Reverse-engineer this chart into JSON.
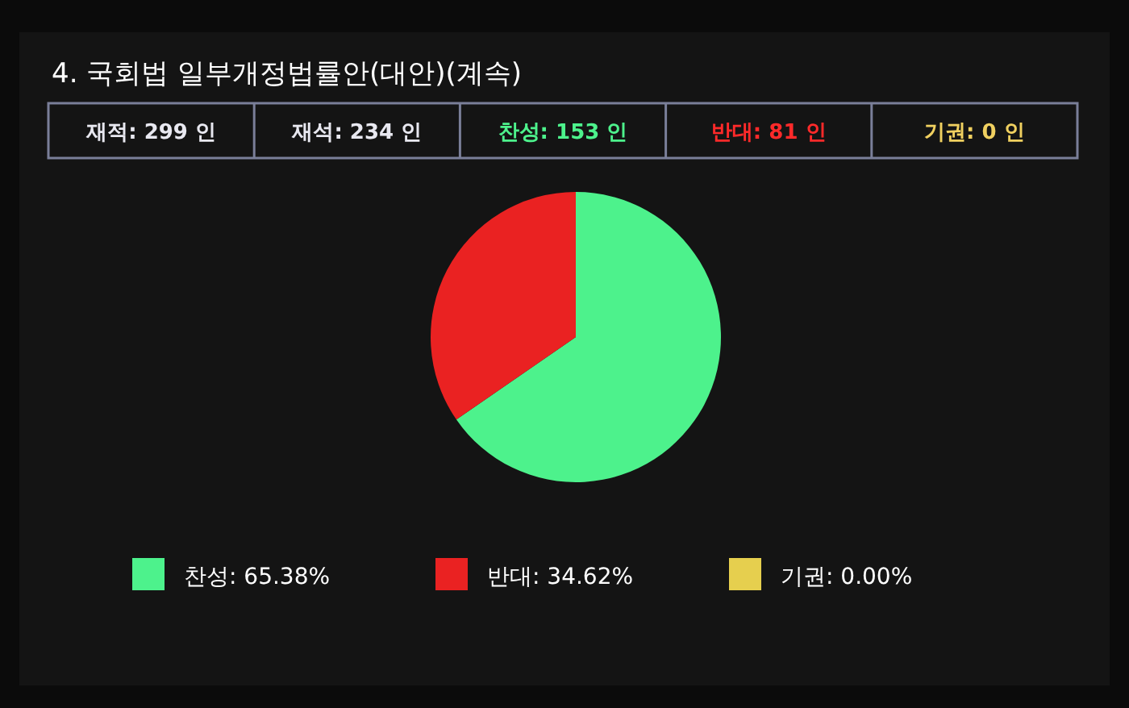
{
  "chart_data": {
    "type": "pie",
    "title": "4. 국회법 일부개정법률안(대안)(계속)",
    "annotations": [
      "재적: 299 인",
      "재석: 234 인",
      "찬성: 153 인",
      "반대: 81 인",
      "기권:  0 인"
    ],
    "categories": [
      "찬성",
      "반대",
      "기권"
    ],
    "values": [
      65.38,
      34.62,
      0.0
    ],
    "value_labels": [
      "65.38%",
      "34.62%",
      "0.00%"
    ],
    "colors": [
      "#4df28c",
      "#ea2222",
      "#e6cf4e"
    ],
    "legend": "bottom"
  }
}
